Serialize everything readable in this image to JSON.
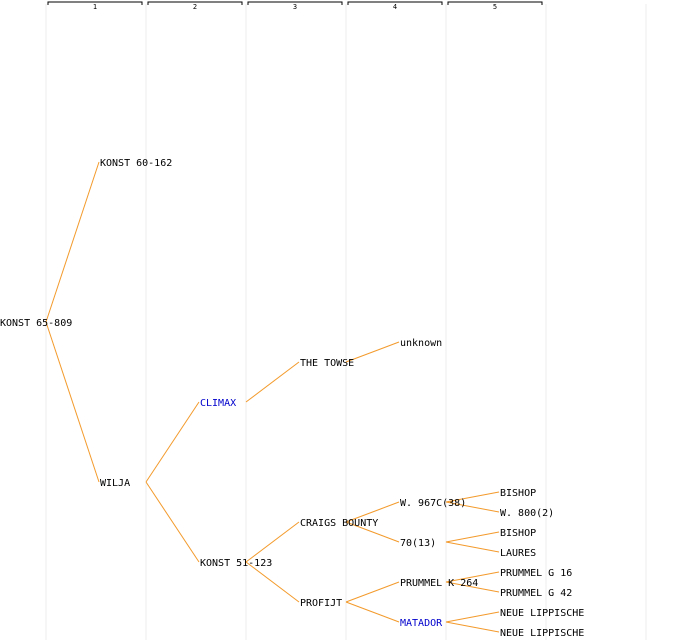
{
  "columns": [
    "1",
    "2",
    "3",
    "4",
    "5"
  ],
  "colors": {
    "edge": "#f39a2b",
    "link_text": "#0000cc",
    "text": "#000000",
    "grid": "#eeeeee"
  },
  "nodes": [
    {
      "id": "n0",
      "label": "KONST 65-809",
      "gen": 0,
      "link": false
    },
    {
      "id": "n1",
      "label": "KONST 60-162",
      "gen": 1,
      "link": false
    },
    {
      "id": "n2",
      "label": "WILJA",
      "gen": 1,
      "link": false
    },
    {
      "id": "n3",
      "label": "CLIMAX",
      "gen": 2,
      "link": true
    },
    {
      "id": "n4",
      "label": "KONST 51-123",
      "gen": 2,
      "link": false
    },
    {
      "id": "n5",
      "label": "THE TOWSE",
      "gen": 3,
      "link": false
    },
    {
      "id": "n6",
      "label": "CRAIGS BOUNTY",
      "gen": 3,
      "link": false
    },
    {
      "id": "n7",
      "label": "PROFIJT",
      "gen": 3,
      "link": false
    },
    {
      "id": "n8",
      "label": "unknown",
      "gen": 4,
      "link": false
    },
    {
      "id": "n9",
      "label": "W. 967C(38)",
      "gen": 4,
      "link": false
    },
    {
      "id": "n10",
      "label": "70(13)",
      "gen": 4,
      "link": false
    },
    {
      "id": "n11",
      "label": "PRUMMEL K 264",
      "gen": 4,
      "link": false
    },
    {
      "id": "n12",
      "label": "MATADOR",
      "gen": 4,
      "link": true
    },
    {
      "id": "n13",
      "label": "BISHOP",
      "gen": 5,
      "link": false
    },
    {
      "id": "n14",
      "label": "W. 800(2)",
      "gen": 5,
      "link": false
    },
    {
      "id": "n15",
      "label": "BISHOP",
      "gen": 5,
      "link": false
    },
    {
      "id": "n16",
      "label": "LAURES",
      "gen": 5,
      "link": false
    },
    {
      "id": "n17",
      "label": "PRUMMEL G 16",
      "gen": 5,
      "link": false
    },
    {
      "id": "n18",
      "label": "PRUMMEL G 42",
      "gen": 5,
      "link": false
    },
    {
      "id": "n19",
      "label": "NEUE LIPPISCHE",
      "gen": 5,
      "link": false
    },
    {
      "id": "n20",
      "label": "NEUE LIPPISCHE",
      "gen": 5,
      "link": false
    }
  ],
  "edges": [
    [
      "n0",
      "n1"
    ],
    [
      "n0",
      "n2"
    ],
    [
      "n2",
      "n3"
    ],
    [
      "n2",
      "n4"
    ],
    [
      "n3",
      "n5"
    ],
    [
      "n4",
      "n6"
    ],
    [
      "n4",
      "n7"
    ],
    [
      "n5",
      "n8"
    ],
    [
      "n6",
      "n9"
    ],
    [
      "n6",
      "n10"
    ],
    [
      "n7",
      "n11"
    ],
    [
      "n7",
      "n12"
    ],
    [
      "n9",
      "n13"
    ],
    [
      "n9",
      "n14"
    ],
    [
      "n10",
      "n15"
    ],
    [
      "n10",
      "n16"
    ],
    [
      "n11",
      "n17"
    ],
    [
      "n11",
      "n18"
    ],
    [
      "n12",
      "n19"
    ],
    [
      "n12",
      "n20"
    ]
  ]
}
